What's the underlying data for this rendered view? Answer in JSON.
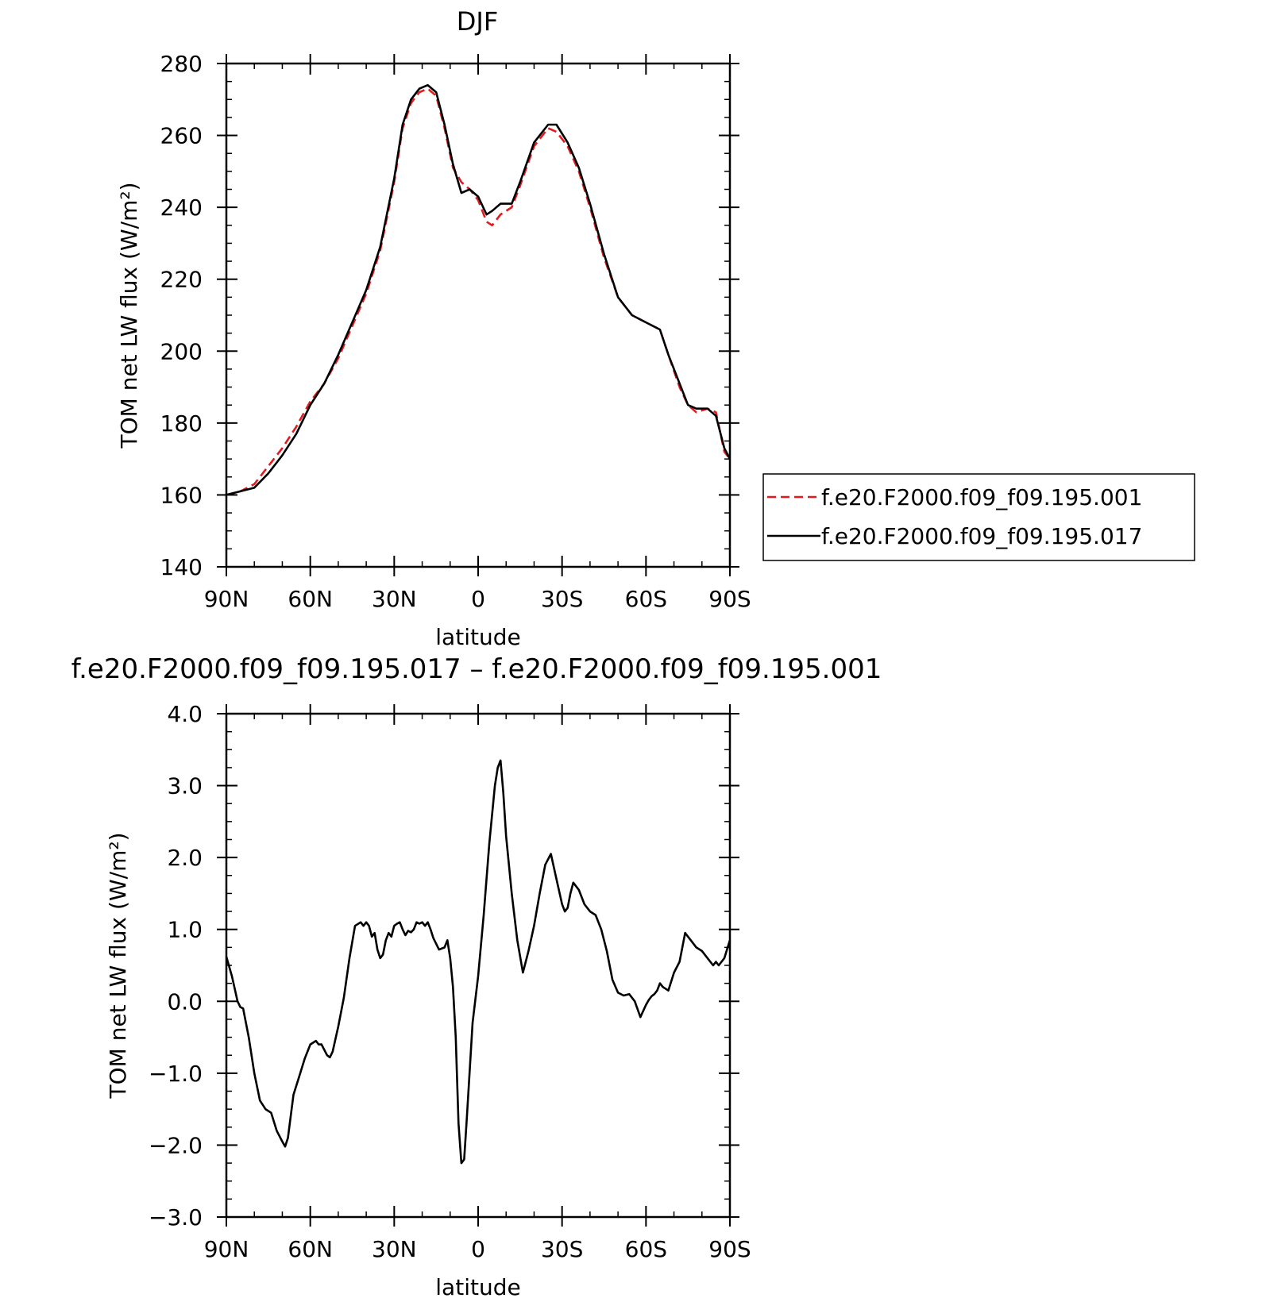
{
  "chart_data": [
    {
      "type": "line",
      "title": "DJF",
      "xlabel": "latitude",
      "ylabel": "TOM net LW flux (W/m²)",
      "xlim": [
        90,
        -90
      ],
      "ylim": [
        140,
        280
      ],
      "xticks": [
        90,
        60,
        30,
        0,
        -30,
        -60,
        -90
      ],
      "xtick_labels": [
        "90N",
        "60N",
        "30N",
        "0",
        "30S",
        "60S",
        "90S"
      ],
      "yticks": [
        140,
        160,
        180,
        200,
        220,
        240,
        260,
        280
      ],
      "ytick_labels": [
        "140",
        "160",
        "180",
        "200",
        "220",
        "240",
        "260",
        "280"
      ],
      "legend_position": "right",
      "series": [
        {
          "name": "f.e20.F2000.f09_f09.195.001",
          "color": "#e41a1c",
          "dash": "dashed",
          "x": [
            90,
            85,
            80,
            75,
            70,
            65,
            60,
            55,
            50,
            45,
            40,
            35,
            30,
            27,
            24,
            21,
            18,
            15,
            12,
            9,
            6,
            3,
            0,
            -3,
            -5,
            -8,
            -12,
            -15,
            -20,
            -25,
            -28,
            -32,
            -36,
            -40,
            -45,
            -50,
            -55,
            -60,
            -65,
            -68,
            -72,
            -75,
            -78,
            -82,
            -85,
            -88,
            -90
          ],
          "y": [
            160,
            161,
            163,
            168,
            173,
            179,
            186,
            191,
            198,
            207,
            216,
            228,
            247,
            262,
            269,
            272,
            273,
            271,
            262,
            251,
            247,
            245,
            242,
            236,
            235,
            238,
            240,
            246,
            257,
            262,
            261,
            257,
            250,
            240,
            226,
            215,
            210,
            208,
            206,
            199,
            190,
            185,
            183,
            184,
            183,
            172,
            170
          ]
        },
        {
          "name": "f.e20.F2000.f09_f09.195.017",
          "color": "#000000",
          "dash": "solid",
          "x": [
            90,
            85,
            80,
            75,
            70,
            65,
            60,
            55,
            50,
            45,
            40,
            35,
            30,
            27,
            24,
            21,
            18,
            15,
            12,
            9,
            6,
            3,
            0,
            -3,
            -5,
            -8,
            -12,
            -15,
            -20,
            -25,
            -28,
            -32,
            -36,
            -40,
            -45,
            -50,
            -55,
            -60,
            -65,
            -68,
            -72,
            -75,
            -78,
            -82,
            -85,
            -88,
            -90
          ],
          "y": [
            160,
            161,
            162,
            166,
            171,
            177,
            185,
            191,
            199,
            208,
            217,
            229,
            248,
            263,
            270,
            273,
            274,
            272,
            263,
            252,
            244,
            245,
            243,
            238,
            239,
            241,
            241,
            247,
            258,
            263,
            263,
            258,
            251,
            241,
            227,
            215,
            210,
            208,
            206,
            199,
            191,
            185,
            184,
            184,
            182,
            173,
            170
          ]
        }
      ]
    },
    {
      "type": "line",
      "title": "f.e20.F2000.f09_f09.195.017 – f.e20.F2000.f09_f09.195.001",
      "xlabel": "latitude",
      "ylabel": "TOM net LW flux (W/m²)",
      "xlim": [
        90,
        -90
      ],
      "ylim": [
        -3.0,
        4.0
      ],
      "xticks": [
        90,
        60,
        30,
        0,
        -30,
        -60,
        -90
      ],
      "xtick_labels": [
        "90N",
        "60N",
        "30N",
        "0",
        "30S",
        "60S",
        "90S"
      ],
      "yticks": [
        -3.0,
        -2.0,
        -1.0,
        0.0,
        1.0,
        2.0,
        3.0,
        4.0
      ],
      "ytick_labels": [
        "−3.0",
        "−2.0",
        "−1.0",
        "0.0",
        "1.0",
        "2.0",
        "3.0",
        "4.0"
      ],
      "series": [
        {
          "color": "#000000",
          "dash": "solid",
          "x": [
            90,
            88,
            86,
            85,
            84,
            82,
            80,
            78,
            76,
            74,
            72,
            70,
            69,
            68,
            66,
            64,
            62,
            60,
            58,
            57,
            56,
            54,
            53,
            52,
            50,
            48,
            46,
            44,
            42,
            41,
            40,
            39,
            38,
            37,
            36,
            35,
            34,
            33,
            32,
            31,
            30,
            29,
            28,
            27,
            26,
            25,
            24,
            23,
            22,
            21,
            20,
            19,
            18,
            17,
            16,
            14,
            12,
            11,
            10,
            9,
            8,
            7,
            6,
            5,
            4,
            2,
            0,
            -2,
            -4,
            -6,
            -7,
            -8,
            -9,
            -10,
            -12,
            -14,
            -16,
            -18,
            -20,
            -22,
            -24,
            -26,
            -28,
            -30,
            -31,
            -32,
            -33,
            -34,
            -36,
            -38,
            -40,
            -42,
            -44,
            -46,
            -48,
            -50,
            -52,
            -54,
            -56,
            -58,
            -60,
            -61,
            -62,
            -63,
            -64,
            -65,
            -66,
            -68,
            -70,
            -72,
            -73,
            -74,
            -76,
            -78,
            -80,
            -82,
            -84,
            -85,
            -86,
            -88,
            -90
          ],
          "y": [
            0.62,
            0.35,
            0.0,
            -0.08,
            -0.1,
            -0.5,
            -1.0,
            -1.38,
            -1.5,
            -1.55,
            -1.8,
            -1.95,
            -2.02,
            -1.9,
            -1.3,
            -1.05,
            -0.8,
            -0.6,
            -0.55,
            -0.6,
            -0.6,
            -0.75,
            -0.78,
            -0.7,
            -0.35,
            0.05,
            0.6,
            1.05,
            1.1,
            1.05,
            1.1,
            1.05,
            0.9,
            0.95,
            0.72,
            0.6,
            0.65,
            0.85,
            0.95,
            0.9,
            1.05,
            1.08,
            1.1,
            1.0,
            0.92,
            0.98,
            0.96,
            1.0,
            1.1,
            1.08,
            1.1,
            1.05,
            1.1,
            1.0,
            0.88,
            0.72,
            0.75,
            0.85,
            0.6,
            0.2,
            -0.5,
            -1.7,
            -2.25,
            -2.2,
            -1.6,
            -0.3,
            0.35,
            1.2,
            2.2,
            3.0,
            3.25,
            3.35,
            2.9,
            2.3,
            1.5,
            0.85,
            0.4,
            0.7,
            1.05,
            1.5,
            1.9,
            2.05,
            1.7,
            1.35,
            1.25,
            1.3,
            1.5,
            1.65,
            1.55,
            1.35,
            1.25,
            1.2,
            1.0,
            0.7,
            0.3,
            0.12,
            0.08,
            0.1,
            0.0,
            -0.22,
            -0.05,
            0.02,
            0.07,
            0.1,
            0.15,
            0.25,
            0.2,
            0.15,
            0.4,
            0.55,
            0.75,
            0.95,
            0.85,
            0.75,
            0.7,
            0.6,
            0.5,
            0.55,
            0.5,
            0.6,
            0.85
          ]
        }
      ]
    }
  ]
}
